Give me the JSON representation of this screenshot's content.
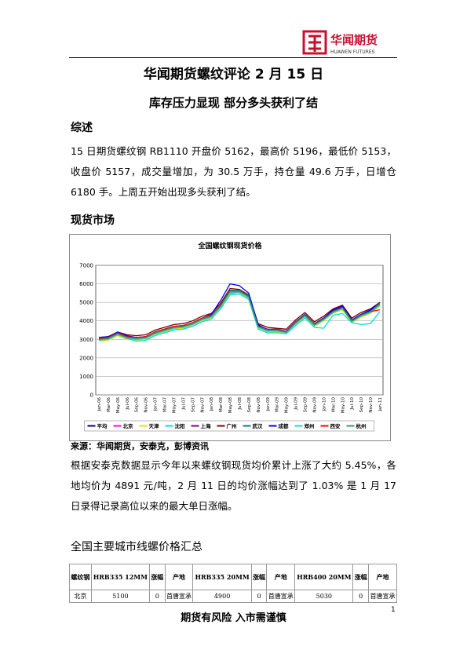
{
  "header": {
    "logo": "华闻期货",
    "logo_en": "HUAWEN FUTURES",
    "title": "华闻期货螺纹评论 2 月 15 日",
    "subtitle": "库存压力显现  部分多头获利了结"
  },
  "sections": [
    {
      "heading": "综述",
      "text": "15 日期货螺纹钢 RB1110 开盘价 5162，最高价 5196，最低价 5153，收盘价 5157，成交量增加，为 30.5 万手，持仓量 49.6 万手，日增仓 6180 手。上周五开始出现多头获利了结。"
    },
    {
      "heading": "现货市场",
      "source": "来源：华闻期货，安泰克，彭博资讯",
      "text": "根据安泰克数据显示今年以来螺纹钢现货均价累计上涨了大约 5.45%，各地均价为 4891 元/吨，2 月 11 日的均价涨幅达到了 1.03% 是 1 月 17 日录得记录高位以来的最大单日涨幅。"
    },
    {
      "heading": "全国主要城市线螺价格汇总"
    }
  ],
  "table": {
    "rows": [
      [
        "螺纹钢",
        "HRB335 12MM",
        "涨幅",
        "产地",
        "HRB335 20MM",
        "涨幅",
        "产地",
        "HRB400 20MM",
        "涨幅",
        "产地"
      ],
      [
        "北京",
        "5100",
        "0",
        "首唐宣承",
        "4900",
        "0",
        "首唐宣承",
        "5030",
        "0",
        "首唐宣承"
      ]
    ]
  },
  "footer": {
    "text": "期货有风险  入市需谨慎",
    "page": "1"
  },
  "chart_data": {
    "type": "line",
    "title": "全国螺纹钢现货价格",
    "categories": [
      "Jan-06",
      "Mar-06",
      "May-06",
      "Jul-06",
      "Sep-06",
      "Nov-06",
      "Jan-07",
      "Mar-07",
      "May-07",
      "Jul-07",
      "Sep-07",
      "Nov-07",
      "Jan-08",
      "Mar-08",
      "May-08",
      "Jul-08",
      "Sep-08",
      "Nov-08",
      "Jan-09",
      "Mar-09",
      "May-09",
      "Jul-09",
      "Sep-09",
      "Nov-09",
      "Jan-10",
      "Mar-10",
      "May-10",
      "Jul-10",
      "Sep-10",
      "Nov-10",
      "Jan-11"
    ],
    "ylim": [
      0,
      7000
    ],
    "yticks": [
      0,
      1000,
      2000,
      3000,
      4000,
      5000,
      6000,
      7000
    ],
    "grid": true,
    "series": [
      {
        "name": "平均",
        "color": "#000080",
        "values": [
          3000,
          3050,
          3300,
          3100,
          3050,
          3100,
          3350,
          3500,
          3650,
          3700,
          3850,
          4100,
          4250,
          4800,
          5600,
          5600,
          5300,
          3700,
          3500,
          3500,
          3400,
          3900,
          4300,
          3800,
          4100,
          4500,
          4700,
          4000,
          4300,
          4500,
          4900
        ]
      },
      {
        "name": "北京",
        "color": "#ff00ff",
        "values": [
          2950,
          3000,
          3250,
          3050,
          3000,
          3050,
          3300,
          3450,
          3600,
          3650,
          3800,
          4050,
          4200,
          4750,
          5500,
          5550,
          5250,
          3650,
          3450,
          3450,
          3350,
          3850,
          4250,
          3750,
          4050,
          4450,
          4650,
          3950,
          4250,
          4450,
          4850
        ]
      },
      {
        "name": "天津",
        "color": "#e6e600",
        "values": [
          2900,
          2950,
          3200,
          3000,
          2950,
          3000,
          3250,
          3400,
          3550,
          3600,
          3750,
          4000,
          4150,
          4700,
          5450,
          5500,
          5200,
          3600,
          3400,
          3400,
          3300,
          3800,
          4200,
          3700,
          4000,
          4400,
          4600,
          3900,
          4200,
          4400,
          4800
        ]
      },
      {
        "name": "沈阳",
        "color": "#00e0e0",
        "values": [
          3000,
          3050,
          3250,
          3050,
          2900,
          2950,
          3200,
          3350,
          3500,
          3550,
          3700,
          3950,
          4100,
          4650,
          5400,
          5450,
          5150,
          3550,
          3350,
          3350,
          3300,
          3750,
          4150,
          3650,
          3600,
          4300,
          4400,
          3900,
          3800,
          3850,
          4500
        ]
      },
      {
        "name": "上海",
        "color": "#800080",
        "values": [
          3050,
          3100,
          3350,
          3150,
          3100,
          3150,
          3400,
          3550,
          3700,
          3750,
          3900,
          4150,
          4300,
          4850,
          5650,
          5650,
          5350,
          3750,
          3550,
          3550,
          3450,
          3950,
          4350,
          3850,
          4150,
          4550,
          4750,
          4050,
          4350,
          4550,
          4950
        ]
      },
      {
        "name": "广州",
        "color": "#800000",
        "values": [
          3100,
          3150,
          3400,
          3250,
          3200,
          3250,
          3500,
          3650,
          3800,
          3850,
          4000,
          4250,
          4400,
          4950,
          5750,
          5700,
          5400,
          3850,
          3650,
          3600,
          3550,
          4050,
          4450,
          3950,
          4250,
          4650,
          4850,
          4150,
          4450,
          4650,
          5000
        ]
      },
      {
        "name": "武汉",
        "color": "#008080",
        "values": [
          3000,
          3050,
          3300,
          3100,
          3050,
          3100,
          3350,
          3500,
          3650,
          3700,
          3850,
          4100,
          4250,
          4850,
          5650,
          5650,
          5350,
          3700,
          3500,
          3500,
          3400,
          3900,
          4300,
          3800,
          4100,
          4500,
          4700,
          4000,
          4300,
          4500,
          4900
        ]
      },
      {
        "name": "成都",
        "color": "#0000ff",
        "values": [
          3100,
          3150,
          3400,
          3200,
          3100,
          3150,
          3400,
          3550,
          3700,
          3750,
          3900,
          4150,
          4350,
          5100,
          6000,
          5900,
          5500,
          3800,
          3500,
          3450,
          3400,
          3900,
          4350,
          3800,
          4150,
          4600,
          4800,
          4050,
          4350,
          4600,
          4950
        ]
      },
      {
        "name": "郑州",
        "color": "#33cccc",
        "values": [
          2950,
          3000,
          3250,
          3050,
          3000,
          3050,
          3300,
          3450,
          3600,
          3650,
          3800,
          4050,
          4200,
          4750,
          5550,
          5550,
          5250,
          3650,
          3450,
          3450,
          3350,
          3850,
          4250,
          3750,
          4050,
          4450,
          4650,
          3950,
          4250,
          4450,
          4850
        ]
      },
      {
        "name": "西安",
        "color": "#ff0000",
        "values": [
          3050,
          3100,
          3350,
          3150,
          3100,
          3150,
          3400,
          3550,
          3700,
          3750,
          3900,
          4150,
          4300,
          4850,
          5600,
          5600,
          5300,
          3700,
          3500,
          3500,
          3400,
          3900,
          4300,
          3800,
          4100,
          4500,
          4700,
          4000,
          4300,
          4500,
          4600
        ]
      },
      {
        "name": "杭州",
        "color": "#339966",
        "values": [
          3000,
          3050,
          3300,
          3100,
          3050,
          3100,
          3350,
          3500,
          3650,
          3700,
          3850,
          4100,
          4250,
          4800,
          5600,
          5600,
          5300,
          3700,
          3500,
          3500,
          3400,
          3900,
          4300,
          3800,
          4100,
          4500,
          4700,
          4000,
          4300,
          4500,
          4950
        ]
      }
    ]
  }
}
